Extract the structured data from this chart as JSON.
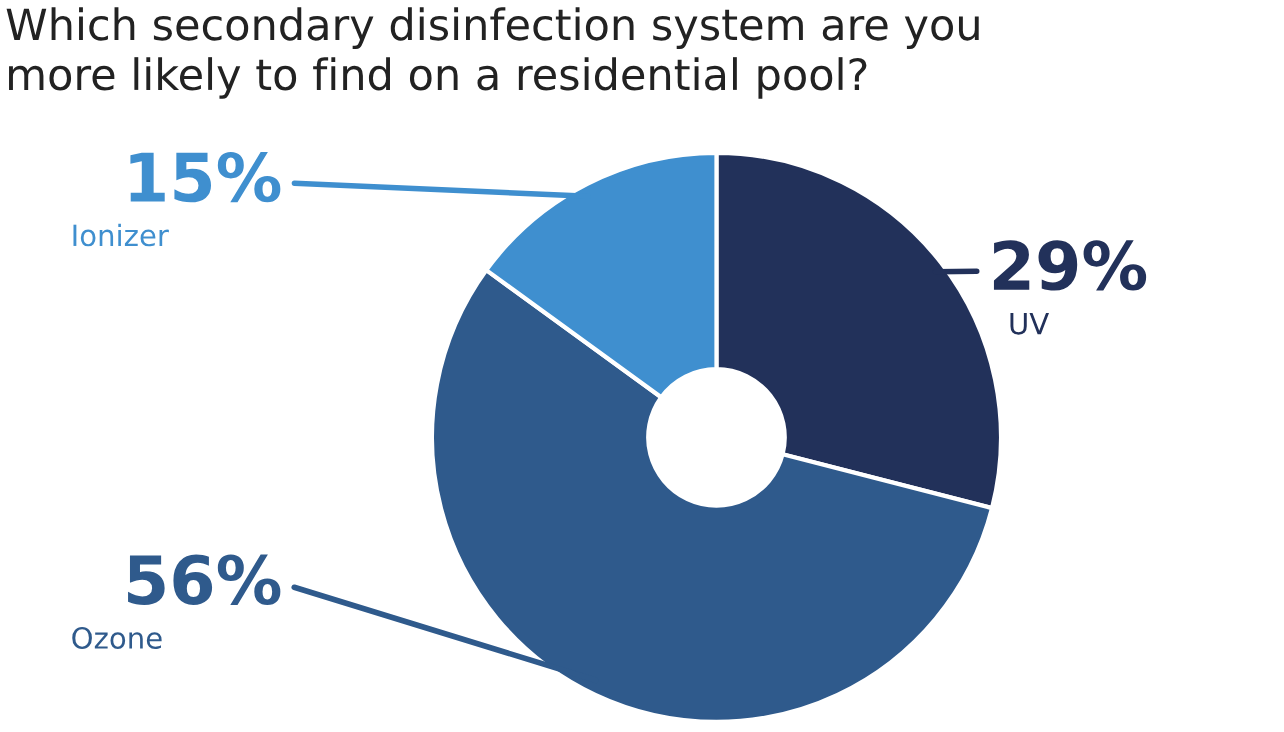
{
  "chart_data": {
    "type": "donut",
    "title": "Which secondary disinfection system are you\nmore likely to find on a residential pool?",
    "categories": [
      "UV",
      "Ozone",
      "Ionizer"
    ],
    "values": [
      29,
      56,
      15
    ],
    "colors": [
      "#22315a",
      "#2f5a8c",
      "#3f8fcf"
    ],
    "value_labels": [
      "29%",
      "56%",
      "15%"
    ]
  }
}
